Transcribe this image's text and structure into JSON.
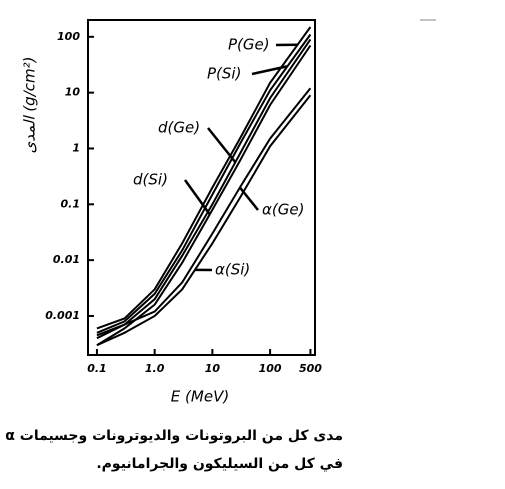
{
  "chart_data": {
    "type": "line",
    "y_label": "المدى (g/cm²)",
    "x_label": "E (MeV)",
    "x": [
      0.1,
      0.3,
      1,
      3,
      10,
      30,
      100,
      500
    ],
    "series": [
      {
        "name": "P(Ge)",
        "color": "#000000",
        "values": [
          0.0006,
          0.0009,
          0.003,
          0.02,
          0.2,
          1.5,
          15,
          150
        ]
      },
      {
        "name": "P(Si)",
        "color": "#000000",
        "values": [
          0.0005,
          0.0008,
          0.0025,
          0.015,
          0.15,
          1.2,
          11,
          110
        ]
      },
      {
        "name": "d(Ge)",
        "color": "#000000",
        "values": [
          0.0004,
          0.0007,
          0.002,
          0.012,
          0.1,
          0.8,
          8,
          90
        ]
      },
      {
        "name": "d(Si)",
        "color": "#000000",
        "values": [
          0.0003,
          0.0006,
          0.0016,
          0.009,
          0.08,
          0.6,
          6,
          70
        ]
      },
      {
        "name": "α(Ge)",
        "color": "#000000",
        "values": [
          0.00045,
          0.0007,
          0.0012,
          0.004,
          0.03,
          0.2,
          1.5,
          12
        ]
      },
      {
        "name": "α(Si)",
        "color": "#000000",
        "values": [
          0.0003,
          0.0005,
          0.001,
          0.003,
          0.02,
          0.13,
          1.1,
          9
        ]
      }
    ],
    "xscale": "log",
    "yscale": "log",
    "xlim": [
      0.07,
      600
    ],
    "ylim": [
      0.0002,
      200
    ],
    "xticks": [
      0.1,
      {
        "value": 1,
        "label": "1.0"
      },
      10,
      100,
      500
    ],
    "yticks": [
      0.001,
      0.01,
      0.1,
      1,
      10,
      100
    ],
    "caption": [
      "مدى كل من البروتونات والديوترونات وجسيمات α",
      "في كل من السيليكون والجرامانيوم."
    ]
  }
}
